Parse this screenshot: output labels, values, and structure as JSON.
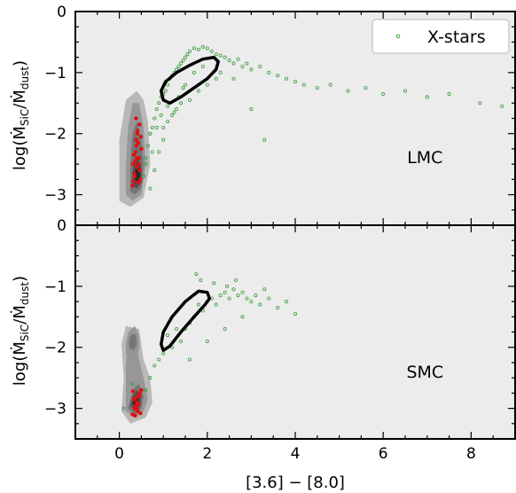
{
  "chart_data": [
    {
      "type": "scatter",
      "panel": "top",
      "annotation": "LMC",
      "ylabel": "log(Ṁ_SiC/Ṁ_dust)",
      "xlim": [
        -1,
        9
      ],
      "ylim": [
        -3.5,
        0
      ],
      "yticks": [
        0,
        -1,
        -2,
        -3
      ],
      "background": "#ececec",
      "grid": false,
      "legend": {
        "placement": "top-right",
        "entries": [
          {
            "name": "X-stars",
            "marker": "open circle",
            "color": "#3a9a3a"
          }
        ]
      },
      "series": [
        {
          "name": "X-stars",
          "kind": "scatter",
          "x": [
            0.55,
            0.6,
            0.65,
            0.7,
            0.75,
            0.8,
            0.85,
            0.9,
            0.95,
            1.0,
            1.05,
            1.1,
            1.15,
            1.2,
            1.25,
            1.3,
            1.35,
            1.4,
            1.45,
            1.5,
            1.55,
            1.6,
            1.7,
            1.8,
            1.9,
            2.0,
            2.1,
            2.2,
            2.3,
            2.4,
            2.5,
            2.6,
            2.7,
            2.8,
            2.9,
            3.0,
            3.2,
            3.4,
            3.6,
            3.8,
            4.0,
            4.2,
            4.5,
            4.8,
            5.2,
            5.6,
            6.0,
            6.5,
            7.0,
            7.5,
            8.2,
            8.7,
            1.0,
            1.2,
            1.4,
            1.6,
            1.8,
            2.0,
            2.2,
            0.7,
            0.8,
            0.9,
            1.0,
            1.1,
            1.3,
            1.5,
            1.7,
            1.9,
            2.3,
            2.6,
            3.0,
            3.3,
            0.6,
            0.7,
            0.75,
            0.85,
            0.95,
            1.1,
            1.25,
            1.35,
            1.45
          ],
          "y": [
            -2.7,
            -2.4,
            -2.2,
            -2.0,
            -1.9,
            -1.75,
            -1.6,
            -1.5,
            -1.4,
            -1.35,
            -1.3,
            -1.2,
            -1.1,
            -1.05,
            -1.0,
            -0.95,
            -0.9,
            -0.85,
            -0.8,
            -0.75,
            -0.7,
            -0.65,
            -0.6,
            -0.62,
            -0.58,
            -0.6,
            -0.65,
            -0.7,
            -0.72,
            -0.75,
            -0.8,
            -0.85,
            -0.78,
            -0.9,
            -0.85,
            -0.95,
            -0.9,
            -1.0,
            -1.05,
            -1.1,
            -1.15,
            -1.2,
            -1.25,
            -1.2,
            -1.3,
            -1.25,
            -1.35,
            -1.3,
            -1.4,
            -1.35,
            -1.5,
            -1.55,
            -1.9,
            -1.7,
            -1.5,
            -1.45,
            -1.3,
            -1.2,
            -1.1,
            -2.9,
            -2.6,
            -2.3,
            -2.1,
            -1.8,
            -1.6,
            -1.2,
            -1.0,
            -0.9,
            -1.0,
            -1.1,
            -1.6,
            -2.1,
            -2.5,
            -2.0,
            -2.3,
            -1.9,
            -1.7,
            -1.55,
            -1.65,
            -1.4,
            -1.25
          ]
        },
        {
          "name": "contour",
          "kind": "closed-curve",
          "color": "#000000",
          "x": [
            0.95,
            1.0,
            1.15,
            1.4,
            1.7,
            2.0,
            2.2,
            2.25,
            2.15,
            1.9,
            1.6,
            1.3,
            1.05,
            0.95
          ],
          "y": [
            -1.3,
            -1.45,
            -1.5,
            -1.4,
            -1.25,
            -1.1,
            -0.95,
            -0.82,
            -0.75,
            -0.78,
            -0.88,
            -1.0,
            -1.15,
            -1.3
          ]
        },
        {
          "name": "density",
          "kind": "filled-contours",
          "levels": [
            "#b5b5b5",
            "#959595",
            "#747474",
            "#4e4e4e",
            "#262626"
          ],
          "regions": [
            {
              "level": 0,
              "x": [
                0.0,
                0.25,
                0.55,
                0.7,
                0.65,
                0.55,
                0.4,
                0.15,
                0.0
              ],
              "y": [
                -3.1,
                -3.2,
                -3.05,
                -2.5,
                -1.8,
                -1.45,
                -1.3,
                -1.45,
                -2.1
              ]
            },
            {
              "level": 1,
              "x": [
                0.15,
                0.3,
                0.5,
                0.6,
                0.55,
                0.45,
                0.3,
                0.2,
                0.15
              ],
              "y": [
                -3.0,
                -3.1,
                -3.0,
                -2.5,
                -1.9,
                -1.5,
                -1.5,
                -1.9,
                -2.5
              ]
            },
            {
              "level": 2,
              "x": [
                0.25,
                0.35,
                0.5,
                0.55,
                0.5,
                0.4,
                0.3,
                0.25
              ],
              "y": [
                -2.95,
                -3.0,
                -2.9,
                -2.5,
                -2.1,
                -1.8,
                -2.0,
                -2.5
              ]
            },
            {
              "level": 3,
              "x": [
                0.3,
                0.4,
                0.5,
                0.5,
                0.42,
                0.33,
                0.3
              ],
              "y": [
                -2.85,
                -2.9,
                -2.8,
                -2.55,
                -2.35,
                -2.45,
                -2.7
              ]
            },
            {
              "level": 4,
              "x": [
                0.35,
                0.42,
                0.48,
                0.46,
                0.4,
                0.35
              ],
              "y": [
                -2.75,
                -2.8,
                -2.7,
                -2.55,
                -2.5,
                -2.62
              ]
            }
          ]
        },
        {
          "name": "red-points",
          "kind": "scatter",
          "color": "#e01010",
          "x": [
            0.3,
            0.35,
            0.4,
            0.45,
            0.5,
            0.38,
            0.42,
            0.33,
            0.47,
            0.36,
            0.44,
            0.39,
            0.41,
            0.31,
            0.48,
            0.37,
            0.43,
            0.34,
            0.46,
            0.4,
            0.32,
            0.49,
            0.45,
            0.38
          ],
          "y": [
            -2.85,
            -2.7,
            -2.55,
            -2.4,
            -2.25,
            -2.1,
            -1.95,
            -2.35,
            -2.6,
            -2.45,
            -2.8,
            -2.2,
            -2.0,
            -2.5,
            -2.75,
            -2.3,
            -2.15,
            -2.65,
            -1.85,
            -2.4,
            -2.78,
            -2.05,
            -2.5,
            -1.75
          ]
        }
      ]
    },
    {
      "type": "scatter",
      "panel": "bottom",
      "annotation": "SMC",
      "xlabel": "[3.6] − [8.0]",
      "ylabel": "log(Ṁ_SiC/Ṁ_dust)",
      "xlim": [
        -1,
        9
      ],
      "ylim": [
        -3.5,
        0
      ],
      "xticks": [
        0,
        2,
        4,
        6,
        8
      ],
      "yticks": [
        0,
        -1,
        -2,
        -3
      ],
      "background": "#ececec",
      "grid": false,
      "series": [
        {
          "name": "X-stars",
          "kind": "scatter",
          "x": [
            0.1,
            0.3,
            0.6,
            0.8,
            1.0,
            1.2,
            1.4,
            1.5,
            1.6,
            1.7,
            1.8,
            1.9,
            2.0,
            2.1,
            2.2,
            2.3,
            2.4,
            2.5,
            2.6,
            2.7,
            2.8,
            2.9,
            3.0,
            3.1,
            3.2,
            3.4,
            3.6,
            3.8,
            4.0,
            0.7,
            0.9,
            1.1,
            1.3,
            1.6,
            2.0,
            2.4,
            2.8,
            1.75,
            1.85,
            2.15,
            2.45,
            2.65,
            3.3
          ],
          "y": [
            -3.0,
            -2.6,
            -2.7,
            -2.3,
            -2.1,
            -2.0,
            -1.9,
            -1.7,
            -1.6,
            -1.5,
            -1.3,
            -1.4,
            -1.25,
            -1.2,
            -1.3,
            -1.15,
            -1.1,
            -1.2,
            -1.05,
            -1.15,
            -1.1,
            -1.2,
            -1.25,
            -1.15,
            -1.3,
            -1.2,
            -1.35,
            -1.25,
            -1.45,
            -2.5,
            -2.2,
            -1.8,
            -1.7,
            -2.2,
            -1.9,
            -1.7,
            -1.5,
            -0.8,
            -0.9,
            -0.95,
            -1.0,
            -0.9,
            -1.05
          ]
        },
        {
          "name": "contour",
          "kind": "closed-curve",
          "color": "#000000",
          "x": [
            0.95,
            1.0,
            1.15,
            1.4,
            1.7,
            1.95,
            2.05,
            2.0,
            1.8,
            1.5,
            1.2,
            1.0,
            0.95
          ],
          "y": [
            -1.95,
            -2.05,
            -1.98,
            -1.75,
            -1.5,
            -1.3,
            -1.2,
            -1.1,
            -1.08,
            -1.25,
            -1.5,
            -1.75,
            -1.95
          ]
        },
        {
          "name": "density",
          "kind": "filled-contours",
          "levels": [
            "#b5b5b5",
            "#959595",
            "#747474",
            "#4e4e4e",
            "#262626"
          ],
          "regions": [
            {
              "level": 0,
              "x": [
                0.05,
                0.25,
                0.6,
                0.75,
                0.7,
                0.55,
                0.45,
                0.15,
                0.05,
                0.1
              ],
              "y": [
                -3.05,
                -3.25,
                -3.15,
                -2.9,
                -2.5,
                -2.2,
                -1.7,
                -1.65,
                -1.95,
                -2.5
              ]
            },
            {
              "level": 1,
              "x": [
                0.15,
                0.35,
                0.55,
                0.65,
                0.55,
                0.45,
                0.35,
                0.2,
                0.15
              ],
              "y": [
                -3.05,
                -3.15,
                -3.05,
                -2.85,
                -2.5,
                -2.2,
                -1.75,
                -1.8,
                -2.3
              ]
            },
            {
              "level": 2,
              "x": [
                0.2,
                0.35,
                0.5,
                0.55,
                0.45,
                0.35,
                0.25
              ],
              "y": [
                -3.0,
                -3.1,
                -3.0,
                -2.8,
                -2.6,
                -2.65,
                -2.85
              ]
            },
            {
              "level": 3,
              "x": [
                0.25,
                0.35,
                0.48,
                0.5,
                0.4,
                0.3
              ],
              "y": [
                -2.95,
                -3.05,
                -2.95,
                -2.8,
                -2.7,
                -2.8
              ]
            },
            {
              "level": 4,
              "x": [
                0.3,
                0.38,
                0.45,
                0.42,
                0.34
              ],
              "y": [
                -2.92,
                -2.98,
                -2.9,
                -2.8,
                -2.82
              ]
            }
          ],
          "secondary_regions": [
            {
              "level": 1,
              "x": [
                0.15,
                0.3,
                0.45,
                0.45,
                0.35,
                0.2,
                0.15
              ],
              "y": [
                -2.1,
                -2.15,
                -2.05,
                -1.8,
                -1.65,
                -1.75,
                -1.95
              ]
            },
            {
              "level": 2,
              "x": [
                0.22,
                0.32,
                0.4,
                0.38,
                0.28,
                0.22
              ],
              "y": [
                -2.0,
                -2.05,
                -1.95,
                -1.8,
                -1.78,
                -1.88
              ]
            }
          ]
        },
        {
          "name": "red-points",
          "kind": "scatter",
          "color": "#e01010",
          "x": [
            0.3,
            0.35,
            0.4,
            0.45,
            0.5,
            0.38,
            0.42,
            0.33,
            0.47,
            0.36,
            0.44,
            0.39,
            0.41,
            0.31,
            0.48
          ],
          "y": [
            -3.1,
            -3.0,
            -2.9,
            -2.8,
            -2.7,
            -2.95,
            -3.05,
            -2.85,
            -2.75,
            -3.12,
            -2.92,
            -2.82,
            -3.0,
            -2.72,
            -3.08
          ]
        }
      ]
    }
  ]
}
